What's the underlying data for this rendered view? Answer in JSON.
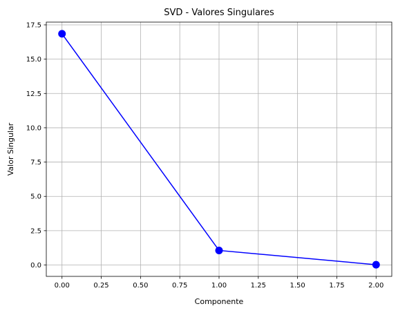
{
  "chart_data": {
    "type": "line",
    "title": "SVD - Valores Singulares",
    "xlabel": "Componente",
    "ylabel": "Valor Singular",
    "x": [
      0,
      1,
      2
    ],
    "series": [
      {
        "values": [
          16.85,
          1.06,
          0.02
        ],
        "color": "#0000ff",
        "marker": "circle"
      }
    ],
    "xlim": [
      -0.1,
      2.1
    ],
    "ylim": [
      -0.83,
      17.7
    ],
    "x_ticks": [
      0.0,
      0.25,
      0.5,
      0.75,
      1.0,
      1.25,
      1.5,
      1.75,
      2.0
    ],
    "x_tick_labels": [
      "0.00",
      "0.25",
      "0.50",
      "0.75",
      "1.00",
      "1.25",
      "1.50",
      "1.75",
      "2.00"
    ],
    "y_ticks": [
      0.0,
      2.5,
      5.0,
      7.5,
      10.0,
      12.5,
      15.0,
      17.5
    ],
    "y_tick_labels": [
      "0.0",
      "2.5",
      "5.0",
      "7.5",
      "10.0",
      "12.5",
      "15.0",
      "17.5"
    ],
    "grid": true,
    "grid_color": "#b0b0b0",
    "legend": false
  }
}
